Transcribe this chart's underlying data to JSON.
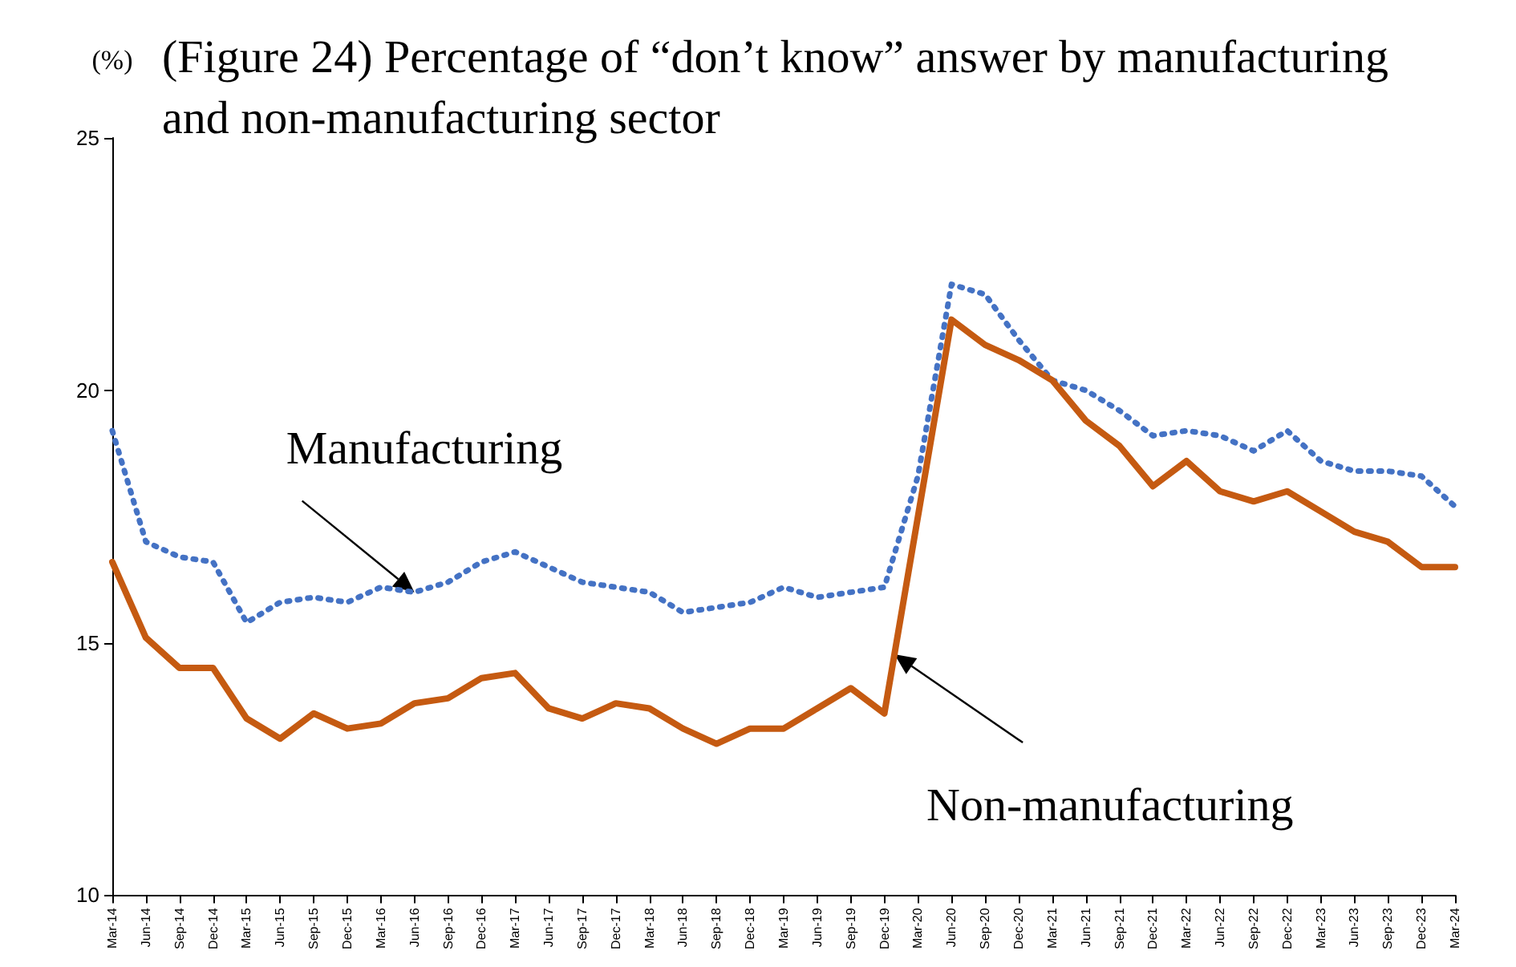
{
  "chart_data": {
    "type": "line",
    "title": "(Figure 24) Percentage of “don’t know” answer by manufacturing and non-manufacturing sector",
    "ylabel": "(%)",
    "categories": [
      "Mar-14",
      "Jun-14",
      "Sep-14",
      "Dec-14",
      "Mar-15",
      "Jun-15",
      "Sep-15",
      "Dec-15",
      "Mar-16",
      "Jun-16",
      "Sep-16",
      "Dec-16",
      "Mar-17",
      "Jun-17",
      "Sep-17",
      "Dec-17",
      "Mar-18",
      "Jun-18",
      "Sep-18",
      "Dec-18",
      "Mar-19",
      "Jun-19",
      "Sep-19",
      "Dec-19",
      "Mar-20",
      "Jun-20",
      "Sep-20",
      "Dec-20",
      "Mar-21",
      "Jun-21",
      "Sep-21",
      "Dec-21",
      "Mar-22",
      "Jun-22",
      "Sep-22",
      "Dec-22",
      "Mar-23",
      "Jun-23",
      "Sep-23",
      "Dec-23",
      "Mar-24"
    ],
    "series": [
      {
        "name": "Manufacturing",
        "color": "#4472c4",
        "line_style": "dotted",
        "values": [
          19.2,
          17.0,
          16.7,
          16.6,
          15.4,
          15.8,
          15.9,
          15.8,
          16.1,
          16.0,
          16.2,
          16.6,
          16.8,
          16.5,
          16.2,
          16.1,
          16.0,
          15.6,
          15.7,
          15.8,
          16.1,
          15.9,
          16.0,
          16.1,
          18.3,
          22.1,
          21.9,
          21.0,
          20.2,
          20.0,
          19.6,
          19.1,
          19.2,
          19.1,
          18.8,
          19.2,
          18.6,
          18.4,
          18.4,
          18.3,
          17.7
        ]
      },
      {
        "name": "Non-manufacturing",
        "color": "#c55a11",
        "line_style": "solid",
        "values": [
          16.6,
          15.1,
          14.5,
          14.5,
          13.5,
          13.1,
          13.6,
          13.3,
          13.4,
          13.8,
          13.9,
          14.3,
          14.4,
          13.7,
          13.5,
          13.8,
          13.7,
          13.3,
          13.0,
          13.3,
          13.3,
          13.7,
          14.1,
          13.6,
          17.5,
          21.4,
          20.9,
          20.6,
          20.2,
          19.4,
          18.9,
          18.1,
          18.6,
          18.0,
          17.8,
          18.0,
          17.6,
          17.2,
          17.0,
          16.5,
          16.5
        ]
      }
    ],
    "ylim": [
      10,
      25
    ],
    "yticks": [
      10,
      15,
      20,
      25
    ],
    "grid": false,
    "marker": "none"
  }
}
